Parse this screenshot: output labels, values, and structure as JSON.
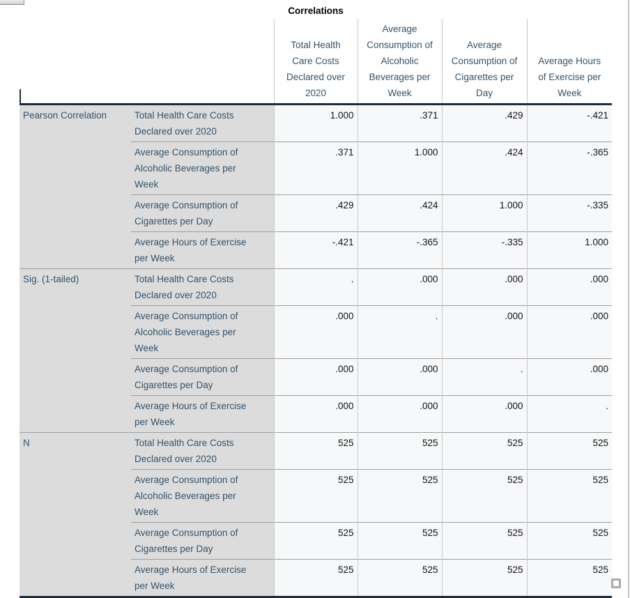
{
  "colors": {
    "header_text": "#33536b",
    "value_text": "#121212",
    "label_bg": "#dcdcdc",
    "data_bg": "#f7f8fa",
    "thick_border": "#1c2b3a",
    "row_line": "#9e9e9e",
    "col_line": "#c9c9c9"
  },
  "table": {
    "title": "Correlations",
    "column_headers": [
      "Total Health\nCare Costs\nDeclared over\n2020",
      "Average\nConsumption of\nAlcoholic\nBeverages per\nWeek",
      "Average\nConsumption of\nCigarettes per\nDay",
      "Average Hours\nof Exercise per\nWeek"
    ],
    "row_variables": [
      "Total Health Care Costs\nDeclared over 2020",
      "Average Consumption of\nAlcoholic Beverages per\nWeek",
      "Average Consumption of\nCigarettes per Day",
      "Average Hours of Exercise\nper Week"
    ],
    "groups": [
      {
        "label": "Pearson Correlation",
        "rows": [
          {
            "values": [
              "1.000",
              ".371",
              ".429",
              "-.421"
            ]
          },
          {
            "values": [
              ".371",
              "1.000",
              ".424",
              "-.365"
            ]
          },
          {
            "values": [
              ".429",
              ".424",
              "1.000",
              "-.335"
            ]
          },
          {
            "values": [
              "-.421",
              "-.365",
              "-.335",
              "1.000"
            ]
          }
        ]
      },
      {
        "label": "Sig. (1-tailed)",
        "rows": [
          {
            "values": [
              ".",
              ".000",
              ".000",
              ".000"
            ]
          },
          {
            "values": [
              ".000",
              ".",
              ".000",
              ".000"
            ]
          },
          {
            "values": [
              ".000",
              ".000",
              ".",
              ".000"
            ]
          },
          {
            "values": [
              ".000",
              ".000",
              ".000",
              "."
            ]
          }
        ]
      },
      {
        "label": "N",
        "rows": [
          {
            "values": [
              "525",
              "525",
              "525",
              "525"
            ]
          },
          {
            "values": [
              "525",
              "525",
              "525",
              "525"
            ]
          },
          {
            "values": [
              "525",
              "525",
              "525",
              "525"
            ]
          },
          {
            "values": [
              "525",
              "525",
              "525",
              "525"
            ]
          }
        ]
      }
    ]
  },
  "chart_data": {
    "type": "table",
    "title": "Correlations",
    "variables": [
      "Total Health Care Costs Declared over 2020",
      "Average Consumption of Alcoholic Beverages per Week",
      "Average Consumption of Cigarettes per Day",
      "Average Hours of Exercise per Week"
    ],
    "statistics": [
      "Pearson Correlation",
      "Sig. (1-tailed)",
      "N"
    ],
    "pearson_correlation": [
      [
        1.0,
        0.371,
        0.429,
        -0.421
      ],
      [
        0.371,
        1.0,
        0.424,
        -0.365
      ],
      [
        0.429,
        0.424,
        1.0,
        -0.335
      ],
      [
        -0.421,
        -0.365,
        -0.335,
        1.0
      ]
    ],
    "sig_1_tailed": [
      [
        null,
        0.0,
        0.0,
        0.0
      ],
      [
        0.0,
        null,
        0.0,
        0.0
      ],
      [
        0.0,
        0.0,
        null,
        0.0
      ],
      [
        0.0,
        0.0,
        0.0,
        null
      ]
    ],
    "n": [
      [
        525,
        525,
        525,
        525
      ],
      [
        525,
        525,
        525,
        525
      ],
      [
        525,
        525,
        525,
        525
      ],
      [
        525,
        525,
        525,
        525
      ]
    ]
  }
}
